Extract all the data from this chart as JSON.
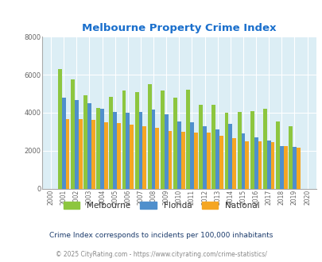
{
  "title": "Melbourne Property Crime Index",
  "years": [
    2000,
    2001,
    2002,
    2003,
    2004,
    2005,
    2006,
    2007,
    2008,
    2009,
    2010,
    2011,
    2012,
    2013,
    2014,
    2015,
    2016,
    2017,
    2018,
    2019,
    2020
  ],
  "melbourne": [
    0,
    6300,
    5750,
    4900,
    4250,
    4850,
    5150,
    5100,
    5500,
    5150,
    4800,
    5200,
    4400,
    4400,
    4000,
    4050,
    4100,
    4200,
    3550,
    3300,
    0
  ],
  "florida": [
    0,
    4800,
    4650,
    4500,
    4200,
    4050,
    4000,
    4050,
    4150,
    3900,
    3550,
    3500,
    3300,
    3100,
    3400,
    2900,
    2700,
    2550,
    2250,
    2200,
    0
  ],
  "national": [
    0,
    3650,
    3650,
    3600,
    3500,
    3450,
    3350,
    3300,
    3200,
    3050,
    3000,
    2950,
    2950,
    2800,
    2650,
    2500,
    2500,
    2450,
    2250,
    2150,
    0
  ],
  "melbourne_color": "#8dc63f",
  "florida_color": "#4f8fcc",
  "national_color": "#f5a623",
  "bg_color": "#dceef5",
  "ylim": [
    0,
    8000
  ],
  "yticks": [
    0,
    2000,
    4000,
    6000,
    8000
  ],
  "subtitle": "Crime Index corresponds to incidents per 100,000 inhabitants",
  "footer": "© 2025 CityRating.com - https://www.cityrating.com/crime-statistics/",
  "subtitle_color": "#1a3a6b",
  "footer_color": "#888888",
  "title_color": "#1a6fcc"
}
